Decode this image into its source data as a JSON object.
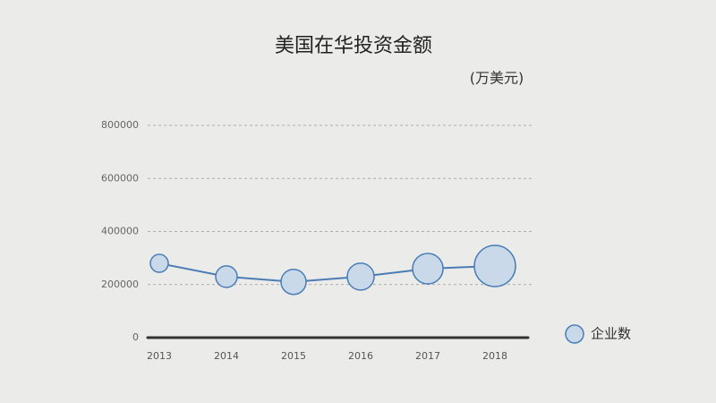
{
  "chart_data": {
    "type": "bubble",
    "title": "美国在华投资金额",
    "subtitle": "(万美元)",
    "categories": [
      "2013",
      "2014",
      "2015",
      "2016",
      "2017",
      "2018"
    ],
    "series": [
      {
        "name": "企业数",
        "color": "#4a7db5",
        "fill": "#c9d9ea",
        "values": [
          280000,
          230000,
          210000,
          230000,
          260000,
          270000
        ],
        "sizes": [
          10,
          12,
          14,
          15,
          17,
          23
        ]
      }
    ],
    "ylim": [
      0,
      800000
    ],
    "yticks": [
      0,
      200000,
      400000,
      600000,
      800000
    ],
    "grid": true,
    "legend": "right"
  }
}
